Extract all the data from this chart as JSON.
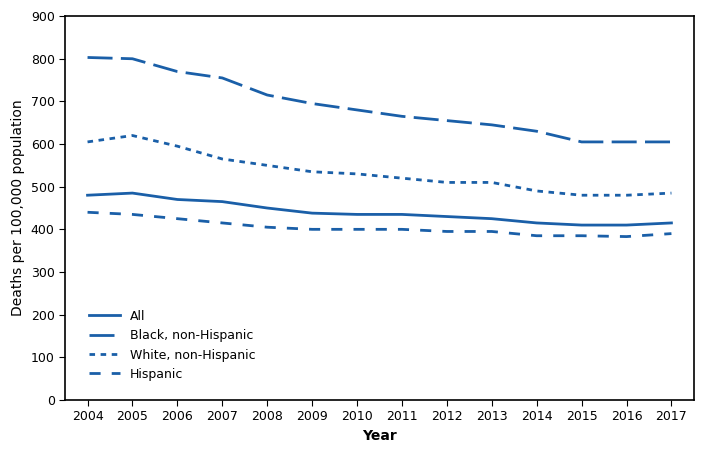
{
  "years": [
    2004,
    2005,
    2006,
    2007,
    2008,
    2009,
    2010,
    2011,
    2012,
    2013,
    2014,
    2015,
    2016,
    2017
  ],
  "all": [
    480,
    485,
    470,
    465,
    450,
    438,
    435,
    435,
    430,
    425,
    415,
    410,
    410,
    415
  ],
  "black_non_hispanic": [
    803,
    800,
    770,
    755,
    715,
    695,
    680,
    665,
    655,
    645,
    630,
    605,
    605,
    605
  ],
  "white_non_hispanic": [
    605,
    620,
    595,
    565,
    550,
    535,
    530,
    520,
    510,
    510,
    490,
    480,
    480,
    485
  ],
  "hispanic": [
    440,
    435,
    425,
    415,
    405,
    400,
    400,
    400,
    395,
    395,
    385,
    385,
    383,
    390
  ],
  "line_color": "#1a5fa8",
  "xlabel": "Year",
  "ylabel": "Deaths per 100,000 population",
  "ylim": [
    0,
    900
  ],
  "yticks": [
    0,
    100,
    200,
    300,
    400,
    500,
    600,
    700,
    800,
    900
  ],
  "legend_labels": [
    "All",
    "Black, non-Hispanic",
    "White, non-Hispanic",
    "Hispanic"
  ],
  "label_fontsize": 10,
  "tick_fontsize": 9,
  "legend_fontsize": 9
}
